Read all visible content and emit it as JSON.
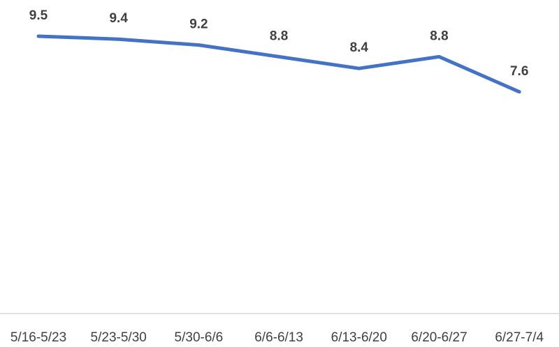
{
  "chart_data": {
    "type": "line",
    "title": "",
    "xlabel": "",
    "ylabel": "",
    "categories": [
      "5/16-5/23",
      "5/23-5/30",
      "5/30-6/6",
      "6/6-6/13",
      "6/13-6/20",
      "6/20-6/27",
      "6/27-7/4"
    ],
    "series": [
      {
        "values": [
          9.5,
          9.4,
          9.2,
          8.8,
          8.4,
          8.8,
          7.6
        ],
        "color": "#4472C4",
        "data_labels": [
          "9.5",
          "9.4",
          "9.2",
          "8.8",
          "8.4",
          "8.8",
          "7.6"
        ]
      }
    ],
    "grid": false,
    "legend": "none",
    "axis_line_color": "#D9D9D9"
  }
}
